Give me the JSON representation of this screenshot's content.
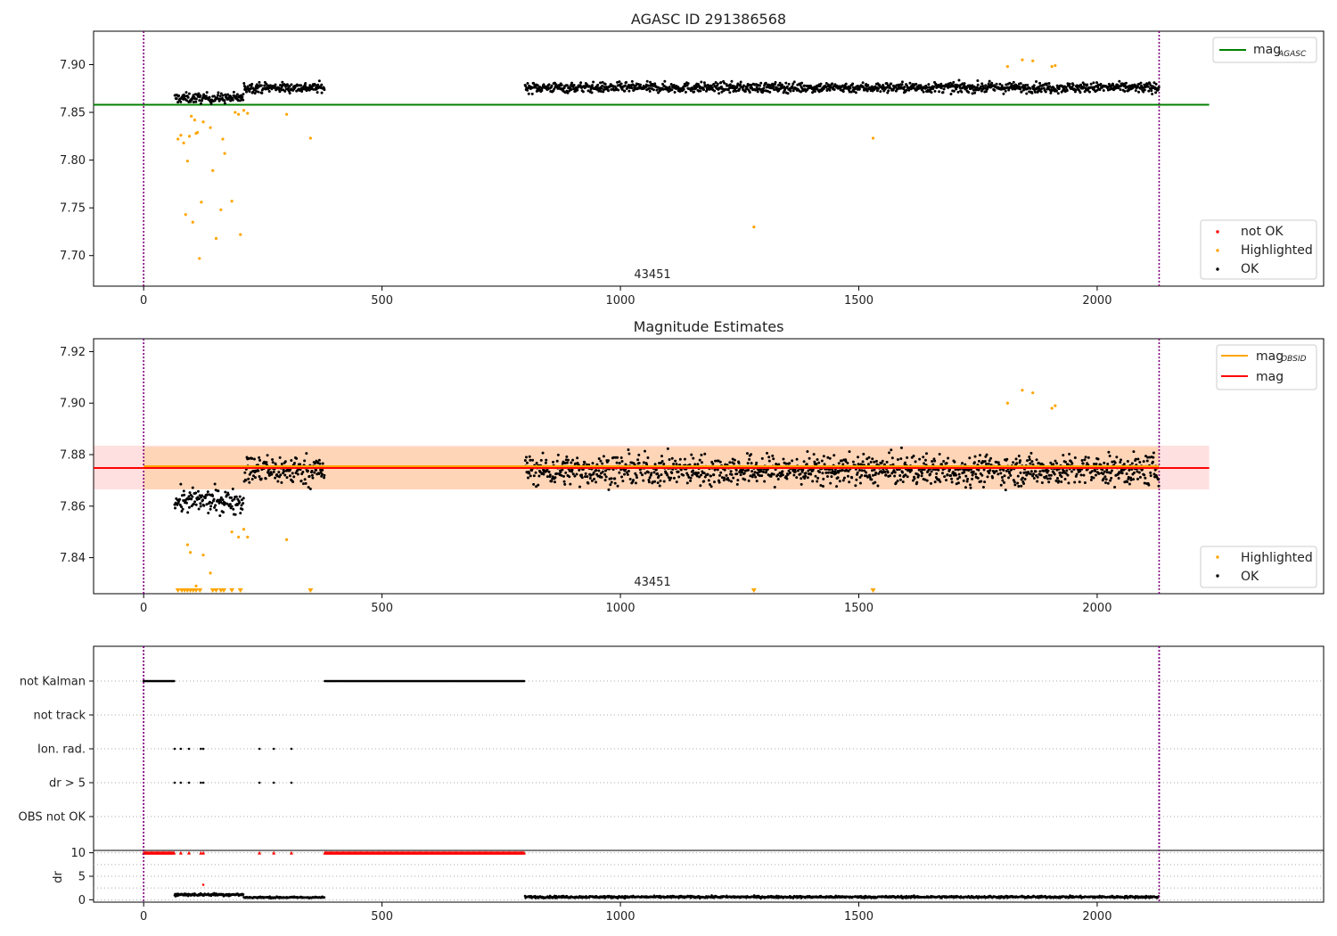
{
  "chart_data": [
    {
      "type": "scatter",
      "title": "AGASC ID 291386568",
      "xlim": [
        -105,
        2475
      ],
      "ylim": [
        7.668,
        7.935
      ],
      "x_ticks": [
        0,
        500,
        1000,
        1500,
        2000
      ],
      "y_ticks": [
        "7.70",
        "7.75",
        "7.80",
        "7.85",
        "7.90"
      ],
      "obsid_label": "43451",
      "obs_boundaries": [
        0,
        2130
      ],
      "reference_lines": [
        {
          "name": "mag",
          "subscript": "AGASC",
          "value": 7.858,
          "x_range": [
            -105,
            2235
          ],
          "color": "#008000"
        }
      ],
      "series": [
        {
          "name": "not OK",
          "color": "#ff0000",
          "points": []
        },
        {
          "name": "Highlighted",
          "color": "#ffa500",
          "points": [
            [
              72,
              7.822
            ],
            [
              78,
              7.826
            ],
            [
              84,
              7.818
            ],
            [
              88,
              7.743
            ],
            [
              92,
              7.799
            ],
            [
              96,
              7.825
            ],
            [
              100,
              7.846
            ],
            [
              103,
              7.735
            ],
            [
              107,
              7.842
            ],
            [
              110,
              7.828
            ],
            [
              113,
              7.829
            ],
            [
              117,
              7.697
            ],
            [
              121,
              7.756
            ],
            [
              125,
              7.84
            ],
            [
              140,
              7.834
            ],
            [
              145,
              7.789
            ],
            [
              152,
              7.718
            ],
            [
              162,
              7.748
            ],
            [
              166,
              7.822
            ],
            [
              170,
              7.807
            ],
            [
              185,
              7.757
            ],
            [
              192,
              7.85
            ],
            [
              199,
              7.848
            ],
            [
              203,
              7.722
            ],
            [
              210,
              7.852
            ],
            [
              218,
              7.849
            ],
            [
              300,
              7.848
            ],
            [
              350,
              7.823
            ],
            [
              1280,
              7.73
            ],
            [
              1530,
              7.823
            ],
            [
              1812,
              7.898
            ],
            [
              1843,
              7.905
            ],
            [
              1865,
              7.904
            ],
            [
              1905,
              7.898
            ],
            [
              1912,
              7.899
            ]
          ]
        },
        {
          "name": "OK",
          "color": "#000000",
          "clusters": [
            {
              "x": [
                65,
                210
              ],
              "y_center": 7.865,
              "y_spread": 0.009
            },
            {
              "x": [
                210,
                380
              ],
              "y_center": 7.876,
              "y_spread": 0.009
            },
            {
              "x": [
                800,
                2130
              ],
              "y_center": 7.876,
              "y_spread": 0.009
            }
          ]
        }
      ],
      "legend": [
        {
          "name": "mag",
          "subscript": "AGASC",
          "kind": "line",
          "position": "top-right"
        },
        {
          "name": "not OK",
          "kind": "marker",
          "position": "bottom-right"
        },
        {
          "name": "Highlighted",
          "kind": "marker",
          "position": "bottom-right"
        },
        {
          "name": "OK",
          "kind": "marker",
          "position": "bottom-right"
        }
      ]
    },
    {
      "type": "scatter",
      "title": "Magnitude Estimates",
      "xlim": [
        -105,
        2475
      ],
      "ylim": [
        7.826,
        7.925
      ],
      "x_ticks": [
        0,
        500,
        1000,
        1500,
        2000
      ],
      "y_ticks": [
        "7.84",
        "7.86",
        "7.88",
        "7.90",
        "7.92"
      ],
      "obsid_label": "43451",
      "obs_boundaries": [
        0,
        2130
      ],
      "reference_lines": [
        {
          "name": "mag",
          "subscript": "OBSID",
          "value": 7.8755,
          "x_range": [
            0,
            2130
          ],
          "color": "#ffa500",
          "band": [
            7.8665,
            7.883
          ]
        },
        {
          "name": "mag",
          "value": 7.8748,
          "x_range": [
            -105,
            2235
          ],
          "color": "#ff0000",
          "band": [
            7.8665,
            7.8835
          ]
        }
      ],
      "series": [
        {
          "name": "Highlighted",
          "color": "#ffa500",
          "points": [
            [
              92,
              7.845
            ],
            [
              98,
              7.842
            ],
            [
              110,
              7.829
            ],
            [
              125,
              7.841
            ],
            [
              140,
              7.834
            ],
            [
              185,
              7.85
            ],
            [
              199,
              7.848
            ],
            [
              210,
              7.851
            ],
            [
              218,
              7.848
            ],
            [
              300,
              7.847
            ],
            [
              1812,
              7.9
            ],
            [
              1843,
              7.905
            ],
            [
              1865,
              7.904
            ],
            [
              1905,
              7.898
            ],
            [
              1912,
              7.899
            ]
          ],
          "clipped_low_x": [
            72,
            80,
            86,
            92,
            98,
            104,
            110,
            118,
            145,
            152,
            162,
            168,
            185,
            203,
            350,
            1280,
            1530
          ]
        },
        {
          "name": "OK",
          "color": "#000000",
          "clusters": [
            {
              "x": [
                65,
                210
              ],
              "y_center": 7.862,
              "y_spread": 0.008
            },
            {
              "x": [
                210,
                380
              ],
              "y_center": 7.874,
              "y_spread": 0.01
            },
            {
              "x": [
                800,
                2130
              ],
              "y_center": 7.874,
              "y_spread": 0.01
            }
          ]
        }
      ],
      "legend": [
        {
          "name": "mag",
          "subscript": "OBSID",
          "kind": "line",
          "position": "top-right"
        },
        {
          "name": "mag",
          "kind": "line",
          "position": "top-right"
        },
        {
          "name": "Highlighted",
          "kind": "marker",
          "position": "bottom-right"
        },
        {
          "name": "OK",
          "kind": "marker",
          "position": "bottom-right"
        }
      ]
    },
    {
      "type": "scatter",
      "xlim": [
        -105,
        2475
      ],
      "x_ticks": [
        0,
        500,
        1000,
        1500,
        2000
      ],
      "flags": [
        "not Kalman",
        "not track",
        "Ion. rad.",
        "dr > 5",
        "OBS not OK"
      ],
      "flag_ranges": {
        "not Kalman": [
          [
            0,
            65
          ],
          [
            380,
            800
          ]
        ],
        "not track": [],
        "Ion. rad.": [],
        "dr > 5": [],
        "OBS not OK": []
      },
      "flag_points": {
        "Ion. rad.": [
          65,
          78,
          95,
          120,
          125,
          243,
          273,
          310
        ],
        "dr > 5": [
          65,
          78,
          95,
          120,
          125,
          243,
          273,
          310
        ]
      },
      "obs_boundaries": [
        0,
        2130
      ]
    },
    {
      "type": "scatter",
      "ylabel": "dr",
      "ylim": [
        -0.5,
        10.5
      ],
      "xlim": [
        -105,
        2475
      ],
      "x_ticks": [
        0,
        500,
        1000,
        1500,
        2000
      ],
      "y_ticks": [
        "0",
        "5",
        "10"
      ],
      "dr_capped_ranges": [
        [
          0,
          65
        ],
        [
          380,
          800
        ]
      ],
      "dr_capped_points": [
        78,
        95,
        120,
        125,
        243,
        273,
        310
      ],
      "dr_capped_value": 10,
      "dr_red_point": [
        125,
        3.2
      ],
      "dr_clusters": [
        {
          "x": [
            65,
            210
          ],
          "center": 1.1,
          "spread": 0.5
        },
        {
          "x": [
            210,
            380
          ],
          "center": 0.5,
          "spread": 0.3
        },
        {
          "x": [
            800,
            2130
          ],
          "center": 0.6,
          "spread": 0.4
        }
      ],
      "obs_boundaries": [
        0,
        2130
      ]
    }
  ]
}
